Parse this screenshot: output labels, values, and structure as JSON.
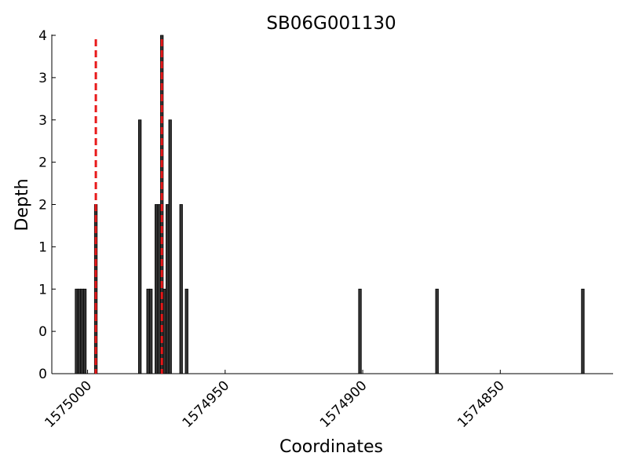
{
  "chart_data": {
    "type": "bar",
    "title": "SB06G001130",
    "xlabel": "Coordinates",
    "ylabel": "Depth",
    "x": [
      1575004,
      1575003,
      1575002,
      1575001,
      1574997,
      1574981,
      1574978,
      1574977,
      1574975,
      1574974,
      1574973,
      1574972,
      1574971,
      1574970,
      1574966,
      1574964,
      1574901,
      1574873,
      1574820
    ],
    "values": [
      1,
      1,
      1,
      1,
      2,
      3,
      1,
      1,
      2,
      2,
      4,
      1,
      2,
      3,
      2,
      1,
      1,
      1,
      1
    ],
    "color": "#333333",
    "xlim": [
      1575013,
      1574809
    ],
    "xticks": [
      1575000,
      1574950,
      1574900,
      1574850
    ],
    "ylim": [
      0,
      4
    ],
    "yticks": [
      0,
      {
        "value": 0.5,
        "label": "0"
      },
      1,
      {
        "value": 1.5,
        "label": "1"
      },
      2,
      {
        "value": 2.5,
        "label": "2"
      },
      3,
      {
        "value": 3.5,
        "label": "3"
      },
      4
    ],
    "vlines": [
      1574997,
      1574973
    ],
    "vline_color": "#e8191a"
  }
}
